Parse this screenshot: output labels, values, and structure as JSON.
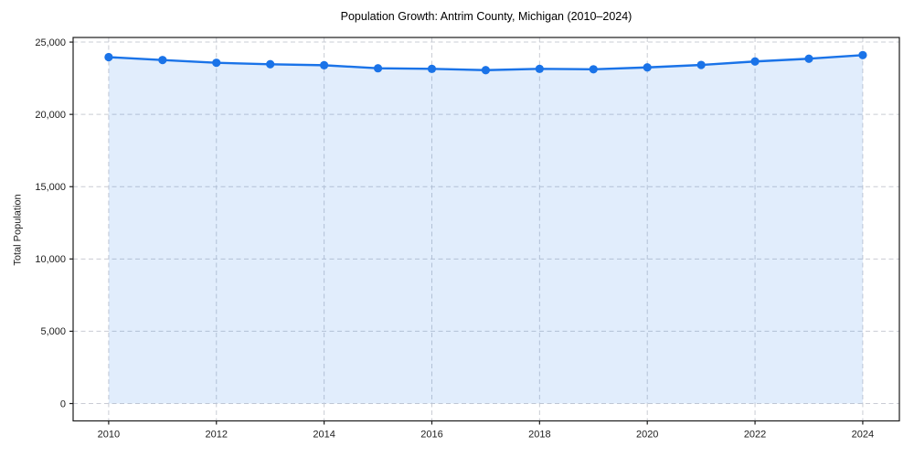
{
  "chart_data": {
    "type": "area",
    "title": "Population Growth: Antrim County, Michigan (2010–2024)",
    "xlabel": "",
    "ylabel": "Total Population",
    "x": [
      2010,
      2011,
      2012,
      2013,
      2014,
      2015,
      2016,
      2017,
      2018,
      2019,
      2020,
      2021,
      2022,
      2023,
      2024
    ],
    "series": [
      {
        "name": "Total Population",
        "values": [
          23960,
          23760,
          23570,
          23470,
          23400,
          23190,
          23150,
          23060,
          23150,
          23120,
          23250,
          23420,
          23660,
          23850,
          24100
        ]
      }
    ],
    "xticks": {
      "values": [
        2010,
        2012,
        2014,
        2016,
        2018,
        2020,
        2022,
        2024
      ],
      "labels": [
        "2010",
        "2012",
        "2014",
        "2016",
        "2018",
        "2020",
        "2022",
        "2024"
      ]
    },
    "yticks": {
      "values": [
        0,
        5000,
        10000,
        15000,
        20000,
        25000
      ],
      "labels": [
        "0",
        "5,000",
        "10,000",
        "15,000",
        "20,000",
        "25,000"
      ]
    },
    "xlim": [
      2009.34,
      2024.68
    ],
    "ylim": [
      -1200,
      25320
    ],
    "grid": true,
    "grid_style": "dashed",
    "legend": "none",
    "fill_baseline": 0,
    "colors": {
      "line": "#1a73e8",
      "fill": "rgba(26,115,232,0.13)",
      "grid": "#c9ccd4",
      "spine": "#1c1c1c",
      "tick_text": "#1c1c1c",
      "title_text": "#000000",
      "background": "#ffffff"
    }
  }
}
